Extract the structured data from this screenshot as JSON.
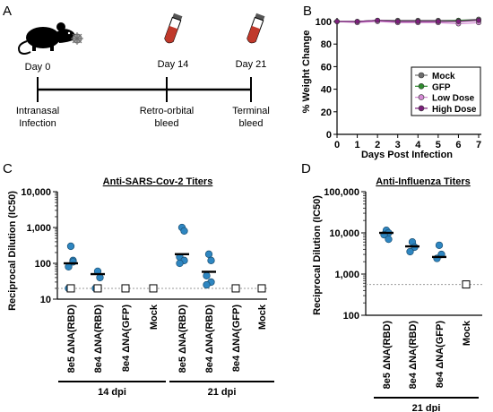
{
  "colors": {
    "axis": "#000000",
    "blue_point": "#2E86C1",
    "blue_edge": "#1B4F72",
    "lod_line": "#9A9A9A",
    "tube_red": "#C0392B",
    "mock_series": "#6E6E6E",
    "gfp_series": "#2E8B2E",
    "low_dose_series": "#D48BD4",
    "high_dose_series": "#7B1F7B"
  },
  "panel_a": {
    "letter": "A",
    "day0_label": "Day 0",
    "day14_label": "Day 14",
    "day21_label": "Day 21",
    "event_left_line1": "Intranasal",
    "event_left_line2": "Infection",
    "event_mid_line1": "Retro-orbital",
    "event_mid_line2": "bleed",
    "event_right_line1": "Terminal",
    "event_right_line2": "bleed",
    "icons": [
      "mouse-icon",
      "virus-icon",
      "blood-tube-icon"
    ]
  },
  "panel_b": {
    "letter": "B"
  },
  "panel_c": {
    "letter": "C"
  },
  "panel_d": {
    "letter": "D"
  },
  "chart_data": [
    {
      "id": "weight",
      "type": "line",
      "title": "",
      "xlabel": "Days Post Infection",
      "ylabel": "% Weight Change",
      "x": [
        0,
        1,
        2,
        3,
        4,
        5,
        6,
        7
      ],
      "xlim": [
        0,
        7
      ],
      "ylim": [
        0,
        100
      ],
      "xticks": [
        "0",
        "1",
        "2",
        "3",
        "4",
        "5",
        "6",
        "7"
      ],
      "yticks": [
        "0",
        "20",
        "40",
        "60",
        "80",
        "100"
      ],
      "legend_position": "bottom-right",
      "series": [
        {
          "name": "Mock",
          "color": "#6E6E6E",
          "marker": "circle",
          "values": [
            100,
            100,
            101,
            101,
            101,
            101,
            101,
            102
          ]
        },
        {
          "name": "GFP",
          "color": "#2E8B2E",
          "marker": "circle",
          "values": [
            100,
            100,
            101,
            100,
            100,
            100,
            101,
            101
          ]
        },
        {
          "name": "Low Dose",
          "color": "#D48BD4",
          "marker": "circle",
          "values": [
            100,
            99,
            100,
            99,
            99,
            99,
            98,
            99
          ]
        },
        {
          "name": "High Dose",
          "color": "#7B1F7B",
          "marker": "circle",
          "values": [
            100,
            100,
            101,
            100,
            100,
            100,
            100,
            101
          ]
        }
      ]
    },
    {
      "id": "sars",
      "type": "scatter",
      "title": "Anti-SARS-Cov-2 Titers",
      "ylabel": "Reciprocal Dilution (IC50)",
      "yscale": "log",
      "ylim": [
        10,
        10000
      ],
      "yticks": [
        "10",
        "100",
        "1,000",
        "10,000"
      ],
      "limit_of_detection": 20,
      "categories": [
        "8e5 ΔNA(RBD)",
        "8e4 ΔNA(RBD)",
        "8e4 ΔNA(GFP)",
        "Mock",
        "8e5 ΔNA(RBD)",
        "8e4 ΔNA(RBD)",
        "8e4 ΔNA(GFP)",
        "Mock"
      ],
      "groups": [
        {
          "label": "14 dpi",
          "from": 0,
          "to": 3
        },
        {
          "label": "21 dpi",
          "from": 4,
          "to": 7
        }
      ],
      "points": [
        {
          "values": [
            300,
            120,
            80,
            110,
            20
          ],
          "median": 100,
          "open_square": [
            20
          ]
        },
        {
          "values": [
            60,
            40,
            20
          ],
          "median": 50,
          "open_square": [
            20
          ]
        },
        {
          "values": [],
          "median": null,
          "open_square": [
            20
          ]
        },
        {
          "values": [],
          "median": null,
          "open_square": [
            20
          ]
        },
        {
          "values": [
            1000,
            800,
            150,
            120,
            100
          ],
          "median": 180,
          "open_square": []
        },
        {
          "values": [
            180,
            120,
            45,
            30,
            25
          ],
          "median": 58,
          "open_square": []
        },
        {
          "values": [],
          "median": null,
          "open_square": [
            20
          ]
        },
        {
          "values": [],
          "median": null,
          "open_square": [
            20
          ]
        }
      ]
    },
    {
      "id": "flu",
      "type": "scatter",
      "title": "Anti-Influenza Titers",
      "ylabel": "Reciprocal Dilution (IC50)",
      "yscale": "log",
      "ylim": [
        100,
        100000
      ],
      "yticks": [
        "100",
        "1,000",
        "10,000",
        "100,000"
      ],
      "limit_of_detection": 560,
      "categories": [
        "8e5 ΔNA(RBD)",
        "8e4 ΔNA(RBD)",
        "8e4 ΔNA(GFP)",
        "Mock"
      ],
      "groups": [
        {
          "label": "21 dpi",
          "from": 0,
          "to": 3
        }
      ],
      "points": [
        {
          "values": [
            11500,
            10000,
            9000,
            7000
          ],
          "median": 10000,
          "open_square": []
        },
        {
          "values": [
            6000,
            4500,
            3500
          ],
          "median": 4700,
          "open_square": []
        },
        {
          "values": [
            5000,
            3000,
            2400
          ],
          "median": 2600,
          "open_square": []
        },
        {
          "values": [],
          "median": null,
          "open_square": [
            560
          ]
        }
      ]
    }
  ]
}
